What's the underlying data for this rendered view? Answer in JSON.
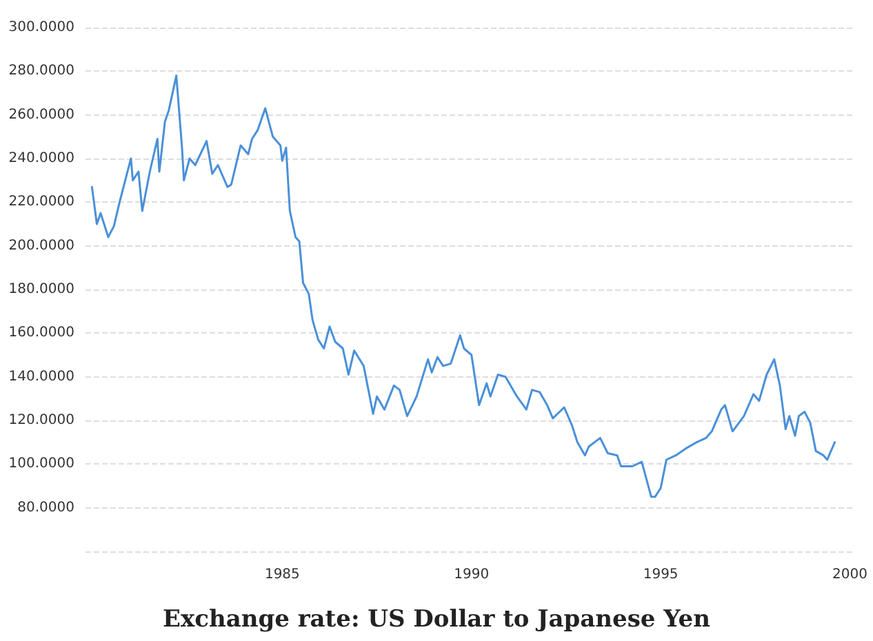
{
  "chart_data": {
    "type": "line",
    "title": "Exchange rate: US Dollar to Japanese Yen",
    "x": [
      1979.97,
      1980.1,
      1980.2,
      1980.4,
      1980.55,
      1980.7,
      1981.0,
      1981.05,
      1981.2,
      1981.3,
      1981.5,
      1981.7,
      1981.75,
      1981.9,
      1982.0,
      1982.2,
      1982.35,
      1982.4,
      1982.55,
      1982.7,
      1983.0,
      1983.15,
      1983.3,
      1983.55,
      1983.65,
      1983.9,
      1984.1,
      1984.2,
      1984.35,
      1984.55,
      1984.75,
      1984.95,
      1985.0,
      1985.1,
      1985.2,
      1985.35,
      1985.45,
      1985.55,
      1985.7,
      1985.8,
      1985.95,
      1986.1,
      1986.25,
      1986.4,
      1986.6,
      1986.75,
      1986.9,
      1987.15,
      1987.4,
      1987.5,
      1987.7,
      1987.95,
      1988.1,
      1988.3,
      1988.55,
      1988.85,
      1988.95,
      1989.1,
      1989.25,
      1989.45,
      1989.7,
      1989.8,
      1990.0,
      1990.2,
      1990.4,
      1990.5,
      1990.7,
      1990.9,
      1991.2,
      1991.45,
      1991.6,
      1991.8,
      1992.0,
      1992.15,
      1992.45,
      1992.65,
      1992.8,
      1993.0,
      1993.1,
      1993.4,
      1993.6,
      1993.85,
      1993.95,
      1994.25,
      1994.5,
      1994.75,
      1994.85,
      1995.0,
      1995.15,
      1995.4,
      1995.65,
      1995.95,
      1996.2,
      1996.35,
      1996.6,
      1996.7,
      1996.9,
      1997.2,
      1997.45,
      1997.6,
      1997.8,
      1998.0,
      1998.15,
      1998.3,
      1998.4,
      1998.55,
      1998.65,
      1998.8,
      1998.95,
      1999.1,
      1999.3,
      1999.4,
      1999.6
    ],
    "series": [
      {
        "color": "#4a90d9",
        "values": [
          227,
          210,
          215,
          204,
          209,
          220,
          240,
          230,
          234,
          216,
          234,
          249,
          234,
          257,
          262,
          278,
          245,
          230,
          240,
          237,
          248,
          233,
          237,
          227,
          228,
          246,
          242,
          249,
          253,
          263,
          250,
          246,
          239,
          245,
          216,
          204,
          202,
          183,
          178,
          166,
          157,
          153,
          163,
          156,
          153,
          141,
          152,
          145,
          123,
          131,
          125,
          136,
          134,
          122,
          131,
          148,
          142,
          149,
          145,
          146,
          159,
          153,
          150,
          127,
          137,
          131,
          141,
          140,
          131,
          125,
          134,
          133,
          127,
          121,
          126,
          118,
          110,
          104,
          108,
          112,
          105,
          104,
          99,
          99,
          101,
          85,
          85,
          89,
          102,
          104,
          107,
          110,
          112,
          115,
          125,
          127,
          115,
          122,
          132,
          129,
          141,
          148,
          136,
          116,
          122,
          113,
          122,
          124,
          119,
          106,
          104,
          102,
          110
        ]
      }
    ],
    "xlim": [
      1979.8,
      2000.1
    ],
    "xticks": [
      1985,
      1990,
      1995,
      2000
    ],
    "ylim": [
      60,
      300
    ],
    "yticks": [
      {
        "value": 60,
        "label": null
      },
      {
        "value": 80,
        "label": "80.0000"
      },
      {
        "value": 100,
        "label": "100.0000"
      },
      {
        "value": 120,
        "label": "120.0000"
      },
      {
        "value": 140,
        "label": "140.0000"
      },
      {
        "value": 160,
        "label": "160.0000"
      },
      {
        "value": 180,
        "label": "180.0000"
      },
      {
        "value": 200,
        "label": "200.0000"
      },
      {
        "value": 220,
        "label": "220.0000"
      },
      {
        "value": 240,
        "label": "240.0000"
      },
      {
        "value": 260,
        "label": "260.0000"
      },
      {
        "value": 280,
        "label": "280.0000"
      },
      {
        "value": 300,
        "label": "300.0000"
      }
    ],
    "grid": "y",
    "marker": "none",
    "line_style": "solid"
  }
}
